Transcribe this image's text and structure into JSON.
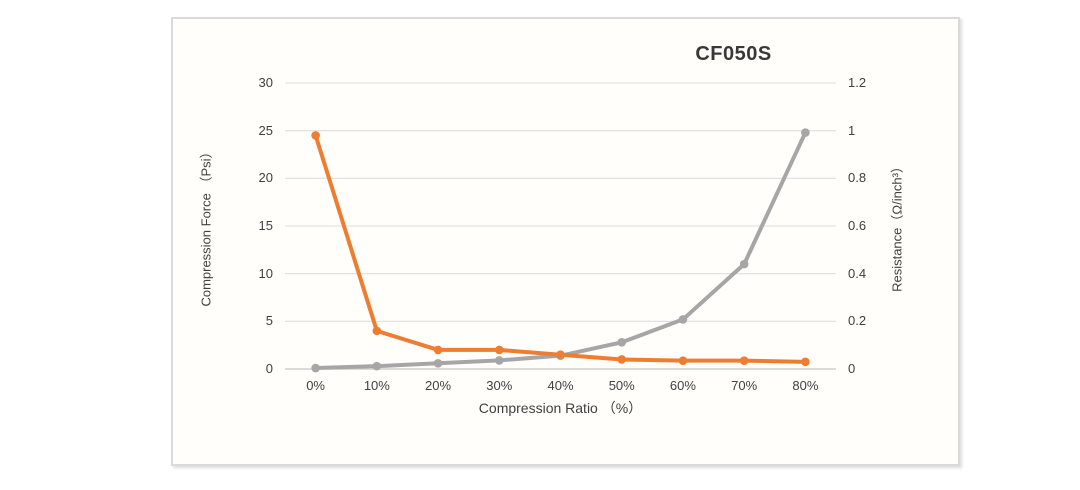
{
  "chart": {
    "title": "CF050S",
    "x_axis": {
      "label": "Compression Ratio （%）",
      "tick_labels": [
        "0%",
        "10%",
        "20%",
        "30%",
        "40%",
        "50%",
        "60%",
        "70%",
        "80%"
      ]
    },
    "y_left": {
      "label": "Compression Force （Psi）",
      "tick_labels": [
        "0",
        "5",
        "10",
        "15",
        "20",
        "25",
        "30"
      ],
      "tick_values": [
        0,
        5,
        10,
        15,
        20,
        25,
        30
      ]
    },
    "y_right": {
      "label": "Resistance（Ω/inch³）",
      "tick_labels": [
        "0",
        "0.2",
        "0.4",
        "0.6",
        "0.8",
        "1",
        "1.2"
      ],
      "tick_values": [
        0,
        0.2,
        0.4,
        0.6,
        0.8,
        1,
        1.2
      ]
    },
    "colors": {
      "force_line": "#a6a6a6",
      "resistance_line": "#ed7d31",
      "gridline": "#dedede",
      "axis_line": "#cfcfcf",
      "text": "#404040",
      "title_text": "#383838"
    }
  },
  "chart_data": {
    "type": "line",
    "title": "CF050S",
    "categories": [
      "0%",
      "10%",
      "20%",
      "30%",
      "40%",
      "50%",
      "60%",
      "70%",
      "80%"
    ],
    "series": [
      {
        "name": "Compression Force",
        "axis": "left",
        "color": "#a6a6a6",
        "values": [
          0.1,
          0.3,
          0.6,
          0.9,
          1.4,
          2.8,
          5.2,
          11.0,
          24.8
        ]
      },
      {
        "name": "Resistance",
        "axis": "right",
        "color": "#ed7d31",
        "values": [
          0.98,
          0.16,
          0.08,
          0.08,
          0.06,
          0.04,
          0.035,
          0.035,
          0.03
        ]
      }
    ],
    "xlabel": "Compression Ratio （%）",
    "ylabel_left": "Compression Force （Psi）",
    "ylabel_right": "Resistance（Ω/inch³）",
    "ylim_left": [
      0,
      30
    ],
    "ylim_right": [
      0,
      1.2
    ],
    "grid": true,
    "legend": "none",
    "markers": true
  }
}
